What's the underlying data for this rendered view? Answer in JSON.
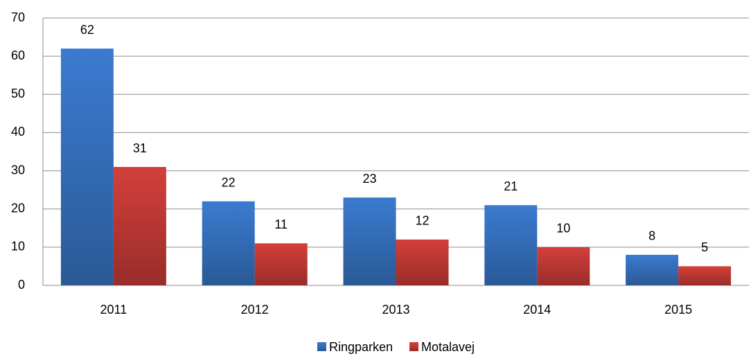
{
  "chart_data": {
    "type": "bar",
    "categories": [
      "2011",
      "2012",
      "2013",
      "2014",
      "2015"
    ],
    "series": [
      {
        "name": "Ringparken",
        "color": "#3b7bd0",
        "values": [
          62,
          22,
          23,
          21,
          8
        ]
      },
      {
        "name": "Motalavej",
        "color": "#d43f3a",
        "values": [
          31,
          11,
          12,
          10,
          5
        ]
      }
    ],
    "ylim": [
      0,
      70
    ],
    "yticks": [
      0,
      10,
      20,
      30,
      40,
      50,
      60,
      70
    ],
    "grid": true,
    "legend": "bottom"
  }
}
